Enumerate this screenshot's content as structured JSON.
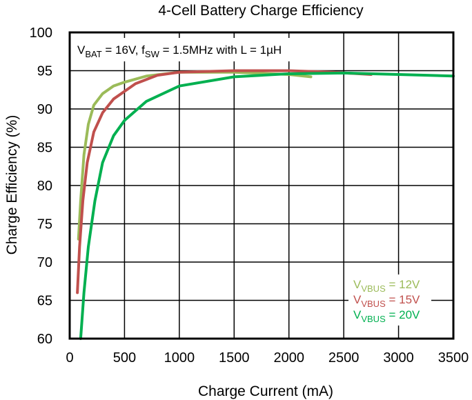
{
  "chart_data": {
    "type": "line",
    "title": "4-Cell Battery Charge Efficiency",
    "xlabel": "Charge Current (mA)",
    "ylabel": "Charge Efficiency (%)",
    "xlim": [
      0,
      3500
    ],
    "ylim": [
      60,
      100
    ],
    "xticks": [
      0,
      500,
      1000,
      1500,
      2000,
      2500,
      3000,
      3500
    ],
    "yticks": [
      60,
      65,
      70,
      75,
      80,
      85,
      90,
      95,
      100
    ],
    "grid": true,
    "annotation": {
      "v": "V",
      "v_sub": "BAT",
      "mid": " = 16V, f",
      "f_sub": "SW",
      "rest": " = 1.5MHz with L = 1µH"
    },
    "legend_position": "bottom-right",
    "series": [
      {
        "name": "VVBUS = 12V",
        "label_main": "V",
        "label_sub": "VBUS",
        "label_value": " = 12V",
        "color": "#9bbb59",
        "x": [
          80,
          100,
          130,
          170,
          220,
          300,
          400,
          500,
          700,
          1000,
          1500,
          2000,
          2200
        ],
        "y": [
          73,
          78,
          84,
          88,
          90.5,
          92,
          93,
          93.5,
          94.3,
          94.8,
          94.8,
          94.5,
          94.2
        ]
      },
      {
        "name": "VVBUS = 15V",
        "label_main": "V",
        "label_sub": "VBUS",
        "label_value": " = 15V",
        "color": "#c0504d",
        "x": [
          70,
          90,
          120,
          160,
          220,
          300,
          400,
          600,
          800,
          1000,
          1500,
          2000,
          2400,
          2750
        ],
        "y": [
          66,
          72,
          78,
          83,
          87,
          89.5,
          91.3,
          93.3,
          94.4,
          94.8,
          95,
          95,
          94.8,
          94.5
        ]
      },
      {
        "name": "VVBUS = 20V",
        "label_main": "V",
        "label_sub": "VBUS",
        "label_value": " = 20V",
        "color": "#00b050",
        "x": [
          100,
          130,
          170,
          230,
          300,
          400,
          500,
          700,
          1000,
          1500,
          2000,
          2500,
          3000,
          3500
        ],
        "y": [
          60,
          66,
          72,
          78,
          83,
          86.5,
          88.5,
          91,
          93,
          94.2,
          94.6,
          94.7,
          94.5,
          94.3
        ]
      }
    ]
  }
}
